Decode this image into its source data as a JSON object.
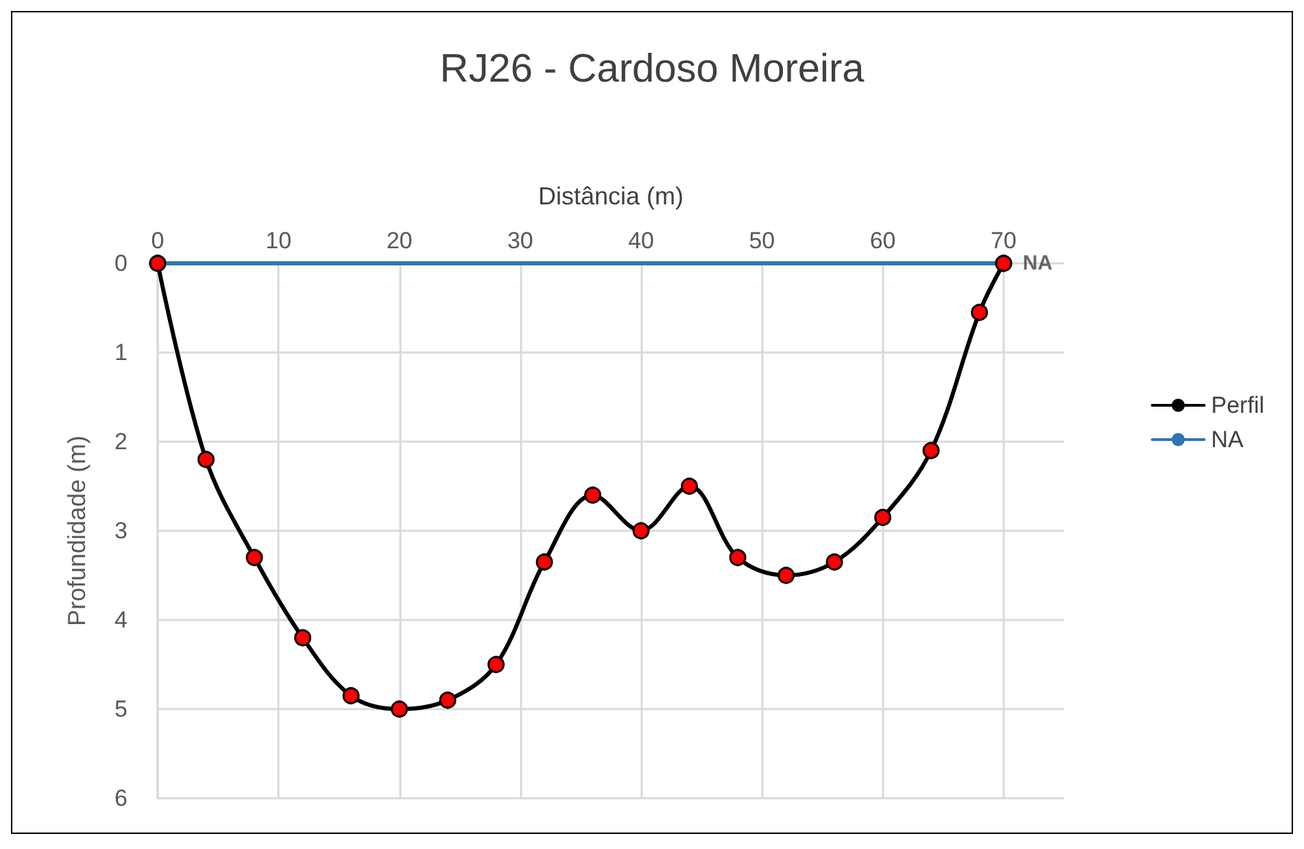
{
  "chart_data": {
    "type": "line",
    "title": "RJ26 - Cardoso Moreira",
    "xlabel": "Distância (m)",
    "ylabel": "Profundidade (m)",
    "xlim": [
      0,
      75
    ],
    "xticks": [
      0,
      10,
      20,
      30,
      40,
      50,
      60,
      70
    ],
    "ylim": [
      6,
      0
    ],
    "yticks": [
      0,
      1,
      2,
      3,
      4,
      5,
      6
    ],
    "grid": true,
    "legend": "right",
    "marker": "circle",
    "line_style": "solid",
    "series": [
      {
        "name": "Perfil",
        "color": "#000000",
        "x": [
          0,
          4,
          8,
          12,
          16,
          20,
          24,
          28,
          32,
          36,
          40,
          44,
          48,
          52,
          56,
          60,
          64,
          68,
          70
        ],
        "values": [
          0,
          2.2,
          3.3,
          4.2,
          4.85,
          5.0,
          4.9,
          4.5,
          3.35,
          2.6,
          3.0,
          2.5,
          3.3,
          3.5,
          3.35,
          2.85,
          2.1,
          0.55,
          0
        ],
        "colors": [
          "#ff0000",
          "#ff0000",
          "#ff0000",
          "#ff0000",
          "#ff0000",
          "#ff0000",
          "#ff0000",
          "#ff0000",
          "#ff0000",
          "#ff0000",
          "#ff0000",
          "#ff0000",
          "#ff0000",
          "#ff0000",
          "#ff0000",
          "#ff0000",
          "#ff0000",
          "#ff0000",
          "#ff0000"
        ]
      },
      {
        "name": "NA",
        "color": "#2e75b6",
        "x": [
          0,
          70
        ],
        "values": [
          0,
          0
        ],
        "colors": [
          "#bdd7ee",
          "#bdd7ee"
        ]
      }
    ],
    "annotations": [
      {
        "text": "NA",
        "x": 70,
        "y": 0
      }
    ]
  }
}
